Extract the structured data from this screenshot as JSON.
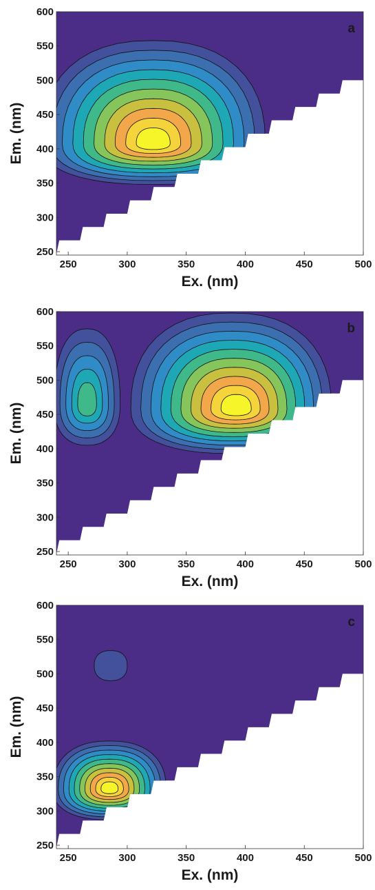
{
  "chart_data": [
    {
      "type": "heatmap",
      "panel_label": "a",
      "xlabel": "Ex. (nm)",
      "ylabel": "Em. (nm)",
      "xlim": [
        240,
        500
      ],
      "ylim": [
        245,
        600
      ],
      "xticks": [
        250,
        300,
        350,
        400,
        450,
        500
      ],
      "yticks": [
        250,
        300,
        350,
        400,
        450,
        500,
        550,
        600
      ],
      "masked_region": "below diagonal edge from (240, 247) to (500, 500) is blank",
      "peaks": [
        {
          "ex": 322,
          "em": 408,
          "intensity_level": 10
        }
      ],
      "contour_levels": 10,
      "colors": [
        "#4b2c86",
        "#43509b",
        "#3b6fb0",
        "#2f8cc7",
        "#1ea7b5",
        "#3fb98a",
        "#86c55b",
        "#c9c03f",
        "#f2a74a",
        "#f5d33a",
        "#f5f52a"
      ]
    },
    {
      "type": "heatmap",
      "panel_label": "b",
      "xlabel": "Ex. (nm)",
      "ylabel": "Em. (nm)",
      "xlim": [
        240,
        500
      ],
      "ylim": [
        245,
        600
      ],
      "xticks": [
        250,
        300,
        350,
        400,
        450,
        500
      ],
      "yticks": [
        250,
        300,
        350,
        400,
        450,
        500,
        550,
        600
      ],
      "masked_region": "below diagonal edge from (240, 247) to (500, 500) is blank",
      "peaks": [
        {
          "ex": 266,
          "em": 465,
          "intensity_level": 5
        },
        {
          "ex": 388,
          "em": 458,
          "intensity_level": 10
        }
      ],
      "contour_levels": 10,
      "colors": [
        "#4b2c86",
        "#43509b",
        "#3b6fb0",
        "#2f8cc7",
        "#1ea7b5",
        "#3fb98a",
        "#86c55b",
        "#c9c03f",
        "#f2a74a",
        "#f5d33a",
        "#f5f52a"
      ]
    },
    {
      "type": "heatmap",
      "panel_label": "c",
      "xlabel": "Ex. (nm)",
      "ylabel": "Em. (nm)",
      "xlim": [
        240,
        500
      ],
      "ylim": [
        245,
        600
      ],
      "xticks": [
        250,
        300,
        350,
        400,
        450,
        500
      ],
      "yticks": [
        250,
        300,
        350,
        400,
        450,
        500,
        550,
        600
      ],
      "masked_region": "below diagonal edge from (240, 247) to (500, 500) is blank",
      "peaks": [
        {
          "ex": 285,
          "em": 332,
          "intensity_level": 10
        },
        {
          "ex": 286,
          "em": 512,
          "intensity_level": 1
        }
      ],
      "contour_levels": 10,
      "colors": [
        "#4b2c86",
        "#43509b",
        "#3b6fb0",
        "#2f8cc7",
        "#1ea7b5",
        "#3fb98a",
        "#86c55b",
        "#c9c03f",
        "#f2a74a",
        "#f5d33a",
        "#f5f52a"
      ]
    }
  ]
}
